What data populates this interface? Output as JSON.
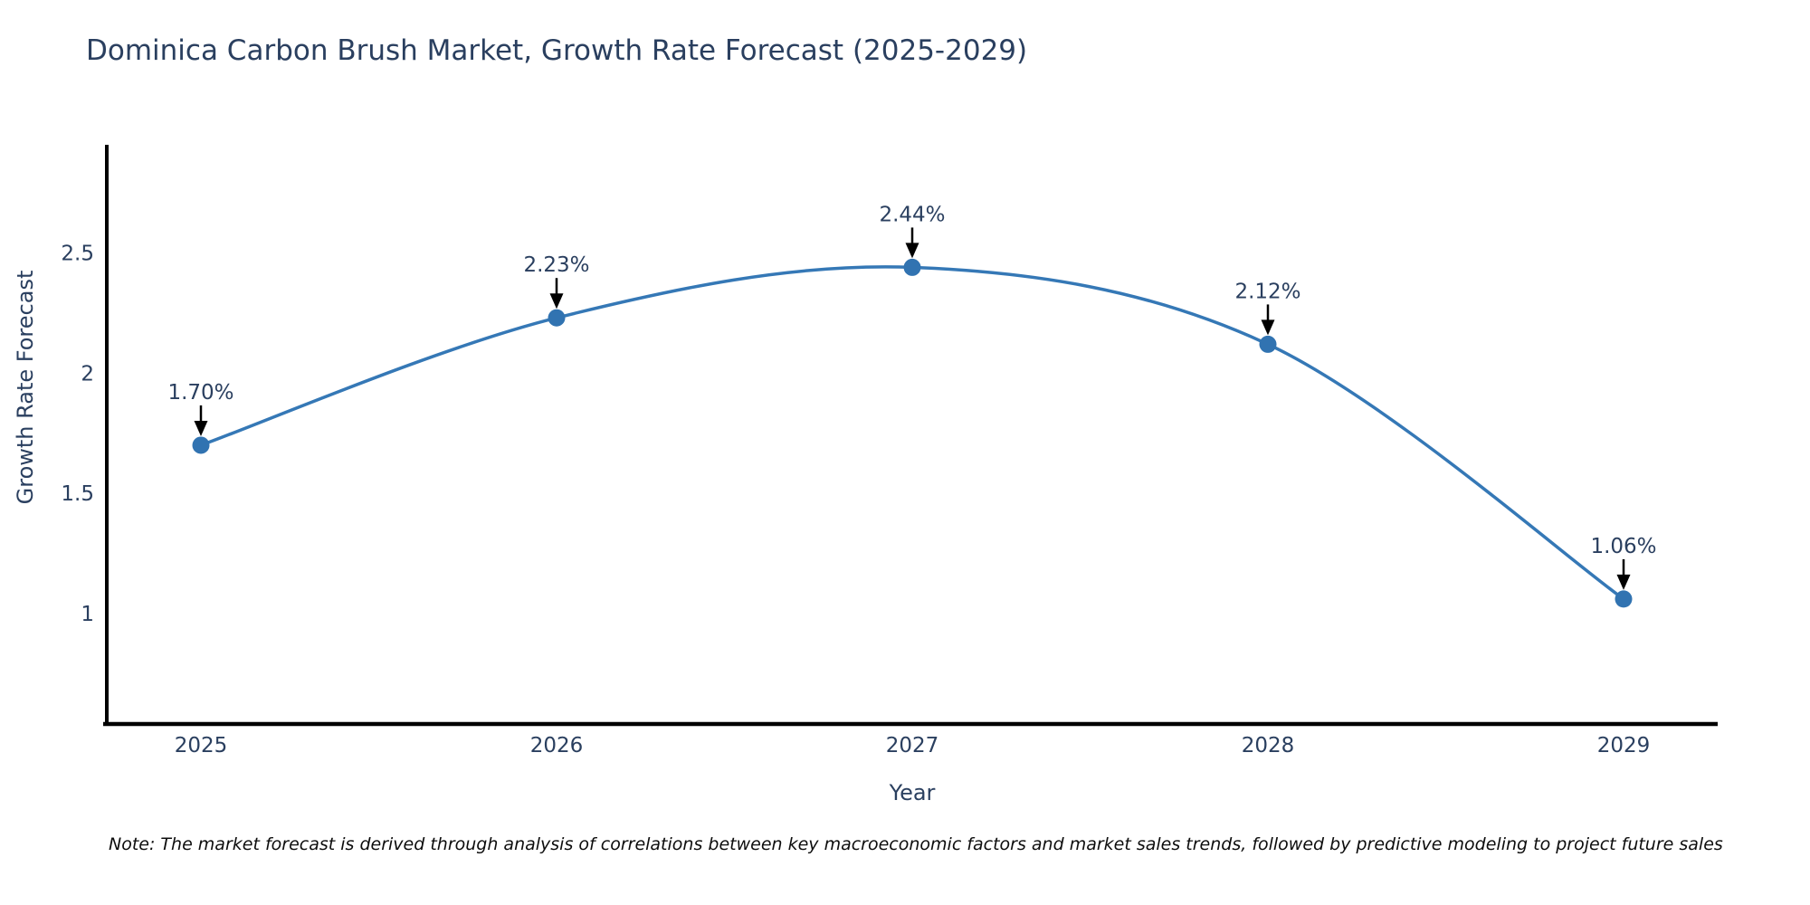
{
  "title": "Dominica Carbon Brush Market, Growth Rate Forecast (2025-2029)",
  "note": "Note: The market forecast is derived through analysis of correlations between key macroeconomic factors and market sales trends, followed by predictive modeling to project future sales",
  "chart_data": {
    "type": "line",
    "line_shape": "spline",
    "title": "Dominica Carbon Brush Market, Growth Rate Forecast (2025-2029)",
    "xlabel": "Year",
    "ylabel": "Growth Rate Forecast",
    "x": [
      "2025",
      "2026",
      "2027",
      "2028",
      "2029"
    ],
    "series": [
      {
        "name": "Growth Rate Forecast",
        "values": [
          1.7,
          2.23,
          2.44,
          2.12,
          1.06
        ]
      }
    ],
    "point_labels": [
      "1.70%",
      "2.23%",
      "2.44%",
      "2.12%",
      "1.06%"
    ],
    "yticks": [
      1,
      1.5,
      2,
      2.5
    ],
    "ytick_labels": [
      "1",
      "1.5",
      "2",
      "2.5"
    ],
    "ylim": [
      0.54,
      2.95
    ],
    "grid": false,
    "legend_position": "none",
    "colors": {
      "line": "#3578b6",
      "marker": "#3173b1",
      "axis": "#000000",
      "text": "#2a3f5f",
      "annotation_arrow": "#000000",
      "background": "#ffffff"
    }
  }
}
